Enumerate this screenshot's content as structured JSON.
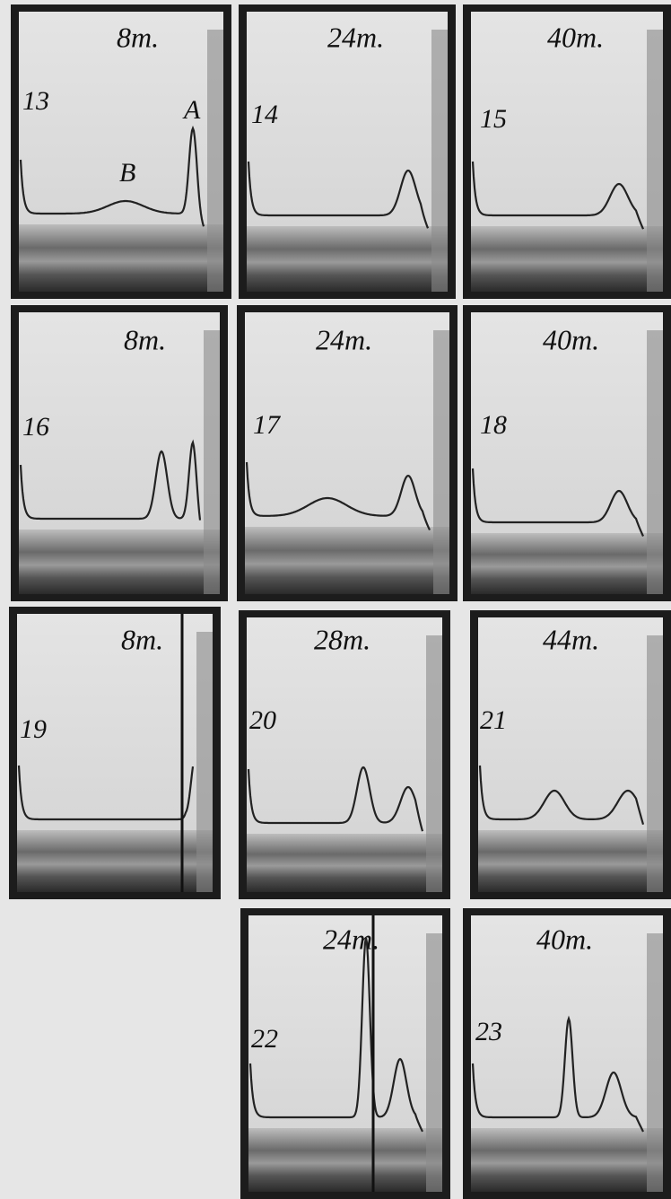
{
  "panels": [
    {
      "number": "13",
      "time": "8m.",
      "annotations": [
        "A",
        "B"
      ]
    },
    {
      "number": "14",
      "time": "24m."
    },
    {
      "number": "15",
      "time": "40m."
    },
    {
      "number": "16",
      "time": "8m."
    },
    {
      "number": "17",
      "time": "24m."
    },
    {
      "number": "18",
      "time": "40m."
    },
    {
      "number": "19",
      "time": "8m."
    },
    {
      "number": "20",
      "time": "28m."
    },
    {
      "number": "21",
      "time": "44m."
    },
    {
      "number": "22",
      "time": "24m."
    },
    {
      "number": "23",
      "time": "40m."
    }
  ]
}
